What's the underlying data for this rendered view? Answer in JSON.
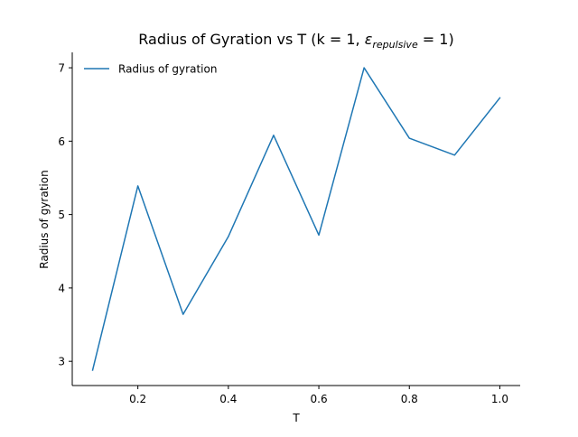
{
  "chart_data": {
    "type": "line",
    "title": {
      "main": "Radius of Gyration vs T (k = 1, ",
      "symbol": "ε",
      "subscript": "repulsive",
      "tail": " = 1)"
    },
    "xlabel": "T",
    "ylabel": "Radius of gyration",
    "xlim": [
      0.055,
      1.045
    ],
    "ylim": [
      2.67,
      7.21
    ],
    "xticks": [
      0.2,
      0.4,
      0.6,
      0.8,
      1.0
    ],
    "xtick_labels": [
      "0.2",
      "0.4",
      "0.6",
      "0.8",
      "1.0"
    ],
    "yticks": [
      3,
      4,
      5,
      6,
      7
    ],
    "ytick_labels": [
      "3",
      "4",
      "5",
      "6",
      "7"
    ],
    "grid": false,
    "legend_position": "top-left",
    "legend_frame": false,
    "spines": [
      "left",
      "bottom"
    ],
    "series": [
      {
        "name": "Radius of gyration",
        "color": "#1f77b4",
        "x": [
          0.1,
          0.2,
          0.3,
          0.4,
          0.5,
          0.6,
          0.7,
          0.8,
          0.9,
          1.0
        ],
        "y": [
          2.88,
          5.39,
          3.64,
          4.7,
          6.08,
          4.72,
          7.0,
          6.04,
          5.81,
          6.59
        ]
      }
    ]
  }
}
